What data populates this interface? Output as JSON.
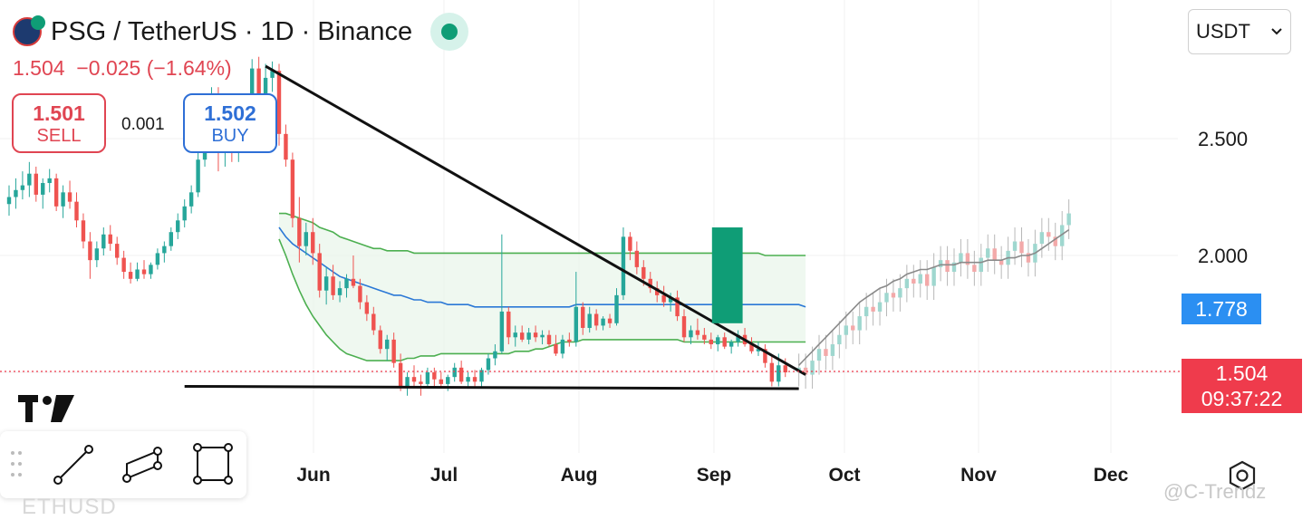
{
  "header": {
    "title": "PSG / TetherUS · 1D · Binance",
    "quote": "1.504  −0.025 (−1.64%)"
  },
  "trade": {
    "sell_price": "1.501",
    "sell_label": "SELL",
    "spread": "0.001",
    "buy_price": "1.502",
    "buy_label": "BUY"
  },
  "currency_selector": {
    "value": "USDT"
  },
  "price_tags": {
    "blue_value": "1.778",
    "last_price": "1.504",
    "countdown": "09:37:22"
  },
  "watermark": "@C-Trendz",
  "bottom_symbol": "ETHUSD",
  "icons": {
    "logo": "psg-club-logo-icon",
    "live": "live-status-dot-icon",
    "currency": "chevron-down-icon",
    "drag": "drag-handle-icon",
    "trend_line": "trend-line-tool-icon",
    "channel": "parallel-channel-tool-icon",
    "rectangle": "rectangle-tool-icon",
    "settings": "settings-gear-icon",
    "brand": "tradingview-logo-icon"
  },
  "colors": {
    "up": "#26a69a",
    "down": "#ef5350",
    "band_line": "#4caf50",
    "band_fill": "#e8f5e9",
    "mid_line": "#2b78d6",
    "drawing": "#111111",
    "box": "#0f9d76",
    "price_line": "#ef3b4c",
    "price_tag_blue": "#2b8ff2",
    "price_tag_red": "#ef3b4c"
  },
  "chart_data": {
    "type": "candlestick",
    "symbol": "PSG / TetherUS",
    "interval": "1D",
    "exchange": "Binance",
    "x_ticks": [
      "Jun",
      "Jul",
      "Aug",
      "Sep",
      "Oct",
      "Nov",
      "Dec"
    ],
    "y_ticks": [
      2.5,
      2.0
    ],
    "ylim": [
      1.32,
      2.88
    ],
    "last_price": 1.504,
    "grid": true,
    "candles_ohlc": [
      [
        2.22,
        2.3,
        2.17,
        2.25
      ],
      [
        2.25,
        2.33,
        2.2,
        2.28
      ],
      [
        2.28,
        2.36,
        2.24,
        2.3
      ],
      [
        2.3,
        2.4,
        2.25,
        2.35
      ],
      [
        2.35,
        2.38,
        2.23,
        2.26
      ],
      [
        2.26,
        2.33,
        2.2,
        2.31
      ],
      [
        2.31,
        2.37,
        2.27,
        2.33
      ],
      [
        2.33,
        2.35,
        2.19,
        2.21
      ],
      [
        2.21,
        2.3,
        2.16,
        2.27
      ],
      [
        2.27,
        2.32,
        2.2,
        2.23
      ],
      [
        2.23,
        2.27,
        2.12,
        2.15
      ],
      [
        2.15,
        2.18,
        2.03,
        2.06
      ],
      [
        2.06,
        2.1,
        1.9,
        1.98
      ],
      [
        1.98,
        2.06,
        1.95,
        2.03
      ],
      [
        2.03,
        2.12,
        2.0,
        2.09
      ],
      [
        2.09,
        2.13,
        2.02,
        2.05
      ],
      [
        2.05,
        2.08,
        1.96,
        1.99
      ],
      [
        1.99,
        2.02,
        1.9,
        1.93
      ],
      [
        1.93,
        1.97,
        1.88,
        1.9
      ],
      [
        1.9,
        1.97,
        1.89,
        1.94
      ],
      [
        1.94,
        1.98,
        1.9,
        1.92
      ],
      [
        1.92,
        1.97,
        1.9,
        1.96
      ],
      [
        1.96,
        2.03,
        1.94,
        2.01
      ],
      [
        2.01,
        2.06,
        1.97,
        2.04
      ],
      [
        2.04,
        2.12,
        2.02,
        2.1
      ],
      [
        2.1,
        2.18,
        2.07,
        2.15
      ],
      [
        2.15,
        2.24,
        2.12,
        2.21
      ],
      [
        2.21,
        2.3,
        2.18,
        2.27
      ],
      [
        2.27,
        2.44,
        2.25,
        2.41
      ],
      [
        2.41,
        2.66,
        2.38,
        2.61
      ],
      [
        2.61,
        2.72,
        2.54,
        2.68
      ],
      [
        2.68,
        2.72,
        2.36,
        2.45
      ],
      [
        2.45,
        2.55,
        2.38,
        2.5
      ],
      [
        2.5,
        2.58,
        2.4,
        2.44
      ],
      [
        2.44,
        2.62,
        2.4,
        2.57
      ],
      [
        2.57,
        2.66,
        2.5,
        2.55
      ],
      [
        2.55,
        2.84,
        2.52,
        2.8
      ],
      [
        2.8,
        2.85,
        2.64,
        2.69
      ],
      [
        2.69,
        2.82,
        2.64,
        2.76
      ],
      [
        2.76,
        2.83,
        2.7,
        2.79
      ],
      [
        2.79,
        2.82,
        2.47,
        2.52
      ],
      [
        2.52,
        2.56,
        2.38,
        2.41
      ],
      [
        2.41,
        2.44,
        2.12,
        2.16
      ],
      [
        2.16,
        2.25,
        1.97,
        2.04
      ],
      [
        2.04,
        2.14,
        2.0,
        2.1
      ],
      [
        2.1,
        2.16,
        1.96,
        2.01
      ],
      [
        2.01,
        2.05,
        1.82,
        1.85
      ],
      [
        1.85,
        1.95,
        1.79,
        1.91
      ],
      [
        1.91,
        1.96,
        1.81,
        1.83
      ],
      [
        1.83,
        1.89,
        1.8,
        1.86
      ],
      [
        1.86,
        1.92,
        1.82,
        1.9
      ],
      [
        1.9,
        2.0,
        1.86,
        1.87
      ],
      [
        1.87,
        1.9,
        1.77,
        1.8
      ],
      [
        1.8,
        1.83,
        1.72,
        1.75
      ],
      [
        1.75,
        1.78,
        1.66,
        1.68
      ],
      [
        1.68,
        1.7,
        1.58,
        1.6
      ],
      [
        1.6,
        1.66,
        1.55,
        1.64
      ],
      [
        1.64,
        1.67,
        1.52,
        1.54
      ],
      [
        1.54,
        1.58,
        1.42,
        1.44
      ],
      [
        1.44,
        1.5,
        1.4,
        1.48
      ],
      [
        1.48,
        1.53,
        1.44,
        1.46
      ],
      [
        1.46,
        1.49,
        1.4,
        1.45
      ],
      [
        1.45,
        1.52,
        1.43,
        1.5
      ],
      [
        1.5,
        1.52,
        1.44,
        1.47
      ],
      [
        1.47,
        1.5,
        1.43,
        1.45
      ],
      [
        1.45,
        1.49,
        1.42,
        1.48
      ],
      [
        1.48,
        1.54,
        1.46,
        1.52
      ],
      [
        1.52,
        1.55,
        1.45,
        1.46
      ],
      [
        1.46,
        1.5,
        1.43,
        1.48
      ],
      [
        1.48,
        1.51,
        1.44,
        1.46
      ],
      [
        1.46,
        1.52,
        1.44,
        1.51
      ],
      [
        1.51,
        1.58,
        1.49,
        1.56
      ],
      [
        1.56,
        1.62,
        1.53,
        1.59
      ],
      [
        1.59,
        2.09,
        1.58,
        1.76
      ],
      [
        1.76,
        1.78,
        1.62,
        1.65
      ],
      [
        1.65,
        1.7,
        1.61,
        1.67
      ],
      [
        1.67,
        1.7,
        1.63,
        1.64
      ],
      [
        1.64,
        1.69,
        1.62,
        1.67
      ],
      [
        1.67,
        1.7,
        1.63,
        1.65
      ],
      [
        1.65,
        1.68,
        1.62,
        1.66
      ],
      [
        1.66,
        1.68,
        1.61,
        1.62
      ],
      [
        1.62,
        1.66,
        1.57,
        1.58
      ],
      [
        1.58,
        1.66,
        1.56,
        1.64
      ],
      [
        1.64,
        1.67,
        1.61,
        1.63
      ],
      [
        1.63,
        1.93,
        1.61,
        1.78
      ],
      [
        1.78,
        1.8,
        1.66,
        1.69
      ],
      [
        1.69,
        1.78,
        1.67,
        1.75
      ],
      [
        1.75,
        1.77,
        1.68,
        1.7
      ],
      [
        1.7,
        1.74,
        1.68,
        1.73
      ],
      [
        1.73,
        1.75,
        1.69,
        1.71
      ],
      [
        1.71,
        1.86,
        1.7,
        1.83
      ],
      [
        1.83,
        2.12,
        1.81,
        2.08
      ],
      [
        2.08,
        2.1,
        1.98,
        2.02
      ],
      [
        2.02,
        2.06,
        1.92,
        1.95
      ],
      [
        1.95,
        1.98,
        1.87,
        1.9
      ],
      [
        1.9,
        1.93,
        1.84,
        1.86
      ],
      [
        1.86,
        1.89,
        1.8,
        1.83
      ],
      [
        1.83,
        1.87,
        1.78,
        1.8
      ],
      [
        1.8,
        1.84,
        1.76,
        1.82
      ],
      [
        1.82,
        1.85,
        1.72,
        1.74
      ],
      [
        1.74,
        1.77,
        1.63,
        1.65
      ],
      [
        1.65,
        1.7,
        1.62,
        1.68
      ],
      [
        1.68,
        1.73,
        1.64,
        1.66
      ],
      [
        1.66,
        1.69,
        1.62,
        1.64
      ],
      [
        1.64,
        1.67,
        1.6,
        1.62
      ],
      [
        1.62,
        1.66,
        1.59,
        1.65
      ],
      [
        1.65,
        1.67,
        1.6,
        1.61
      ],
      [
        1.61,
        1.64,
        1.58,
        1.63
      ],
      [
        1.63,
        1.68,
        1.61,
        1.66
      ],
      [
        1.66,
        1.69,
        1.61,
        1.62
      ],
      [
        1.62,
        1.65,
        1.58,
        1.59
      ],
      [
        1.59,
        1.63,
        1.57,
        1.6
      ],
      [
        1.6,
        1.62,
        1.52,
        1.54
      ],
      [
        1.54,
        1.57,
        1.44,
        1.46
      ],
      [
        1.46,
        1.58,
        1.44,
        1.53
      ],
      [
        1.53,
        1.56,
        1.48,
        1.5
      ]
    ],
    "ghost_projection_closes": [
      1.52,
      1.49,
      1.55,
      1.6,
      1.57,
      1.62,
      1.66,
      1.7,
      1.68,
      1.74,
      1.78,
      1.76,
      1.8,
      1.84,
      1.82,
      1.86,
      1.9,
      1.88,
      1.92,
      1.87,
      1.95,
      1.98,
      1.93,
      1.97,
      2.01,
      1.96,
      1.93,
      1.99,
      2.03,
      1.98,
      1.96,
      2.02,
      2.06,
      2.01,
      1.97,
      2.05,
      2.1,
      2.08,
      2.04,
      2.13,
      2.18
    ],
    "ghost_projection_average": [
      1.53,
      1.56,
      1.59,
      1.62,
      1.65,
      1.68,
      1.71,
      1.74,
      1.77,
      1.8,
      1.82,
      1.84,
      1.86,
      1.87,
      1.89,
      1.9,
      1.92,
      1.93,
      1.94,
      1.94,
      1.95,
      1.96,
      1.96,
      1.96,
      1.97,
      1.97,
      1.97,
      1.97,
      1.98,
      1.98,
      1.98,
      1.99,
      1.99,
      2.0,
      2.0,
      2.01,
      2.03,
      2.05,
      2.07,
      2.09,
      2.11
    ],
    "band_upper": [
      2.18,
      2.18,
      2.17,
      2.16,
      2.15,
      2.14,
      2.12,
      2.11,
      2.1,
      2.08,
      2.07,
      2.06,
      2.05,
      2.04,
      2.03,
      2.03,
      2.02,
      2.02,
      2.02,
      2.02,
      2.01,
      2.01,
      2.01,
      2.01,
      2.01,
      2.01,
      2.01,
      2.01,
      2.01,
      2.01,
      2.01,
      2.01,
      2.01,
      2.01,
      2.01,
      2.01,
      2.01,
      2.01,
      2.01,
      2.01,
      2.01,
      2.01,
      2.01,
      2.01,
      2.01,
      2.01,
      2.01,
      2.01,
      2.01,
      2.01,
      2.01,
      2.01,
      2.01,
      2.01,
      2.01,
      2.01,
      2.01,
      2.01,
      2.01,
      2.01,
      2.01,
      2.01,
      2.01,
      2.01,
      2.01,
      2.01,
      2.01,
      2.01,
      2.01,
      2.01,
      2.01,
      2.01,
      2.0,
      2.0,
      2.0,
      2.0,
      2.0,
      2.0,
      2.0
    ],
    "band_mid": [
      2.12,
      2.08,
      2.05,
      2.03,
      2.01,
      1.99,
      1.97,
      1.95,
      1.93,
      1.91,
      1.9,
      1.89,
      1.88,
      1.87,
      1.86,
      1.85,
      1.84,
      1.83,
      1.83,
      1.82,
      1.81,
      1.81,
      1.8,
      1.8,
      1.8,
      1.79,
      1.79,
      1.79,
      1.79,
      1.78,
      1.78,
      1.78,
      1.78,
      1.78,
      1.78,
      1.78,
      1.78,
      1.78,
      1.78,
      1.78,
      1.78,
      1.78,
      1.78,
      1.78,
      1.79,
      1.79,
      1.79,
      1.79,
      1.79,
      1.79,
      1.79,
      1.79,
      1.79,
      1.79,
      1.79,
      1.79,
      1.79,
      1.79,
      1.79,
      1.79,
      1.79,
      1.79,
      1.79,
      1.79,
      1.79,
      1.79,
      1.79,
      1.79,
      1.79,
      1.79,
      1.79,
      1.79,
      1.79,
      1.79,
      1.79,
      1.79,
      1.79,
      1.79,
      1.78
    ],
    "band_lower": [
      2.07,
      2.0,
      1.92,
      1.85,
      1.79,
      1.74,
      1.7,
      1.66,
      1.63,
      1.6,
      1.58,
      1.57,
      1.56,
      1.55,
      1.55,
      1.55,
      1.55,
      1.55,
      1.55,
      1.56,
      1.56,
      1.57,
      1.57,
      1.57,
      1.58,
      1.58,
      1.58,
      1.58,
      1.58,
      1.58,
      1.58,
      1.58,
      1.58,
      1.58,
      1.58,
      1.59,
      1.59,
      1.59,
      1.6,
      1.6,
      1.61,
      1.62,
      1.63,
      1.63,
      1.63,
      1.64,
      1.64,
      1.64,
      1.64,
      1.64,
      1.64,
      1.64,
      1.64,
      1.64,
      1.64,
      1.64,
      1.64,
      1.64,
      1.64,
      1.64,
      1.63,
      1.63,
      1.63,
      1.63,
      1.63,
      1.63,
      1.63,
      1.63,
      1.63,
      1.63,
      1.63,
      1.63,
      1.63,
      1.63,
      1.63,
      1.63,
      1.63,
      1.63,
      1.63
    ],
    "band_start_index": 40,
    "trend_lines": [
      {
        "kind": "descending-resistance",
        "from": {
          "i": 38,
          "y": 2.81
        },
        "to": {
          "i": 118,
          "y": 1.49
        }
      },
      {
        "kind": "horizontal-support",
        "from": {
          "i": 26,
          "y": 1.44
        },
        "to": {
          "i": 117,
          "y": 1.43
        }
      }
    ],
    "projection_box": {
      "from_i": 104,
      "to_i": 108,
      "y_top": 2.12,
      "y_bottom": 1.71
    }
  }
}
